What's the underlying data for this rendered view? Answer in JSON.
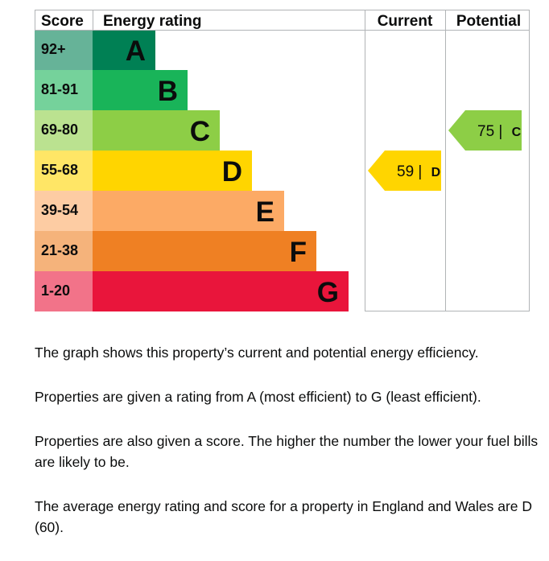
{
  "chart_data": {
    "type": "bar",
    "headers": {
      "score": "Score",
      "rating": "Energy rating",
      "current": "Current",
      "potential": "Potential"
    },
    "bands": [
      {
        "score_range": "92+",
        "letter": "A",
        "color": "#008054",
        "score_bg": "#66b398"
      },
      {
        "score_range": "81-91",
        "letter": "B",
        "color": "#19b459",
        "score_bg": "#75d29b"
      },
      {
        "score_range": "69-80",
        "letter": "C",
        "color": "#8dce46",
        "score_bg": "#bbe290"
      },
      {
        "score_range": "55-68",
        "letter": "D",
        "color": "#ffd500",
        "score_bg": "#ffe666"
      },
      {
        "score_range": "39-54",
        "letter": "E",
        "color": "#fcaa65",
        "score_bg": "#fdcca3"
      },
      {
        "score_range": "21-38",
        "letter": "F",
        "color": "#ef8023",
        "score_bg": "#f5b37b"
      },
      {
        "score_range": "1-20",
        "letter": "G",
        "color": "#e9153b",
        "score_bg": "#f27389"
      }
    ],
    "current": {
      "score": "59",
      "letter": "D",
      "band_index": 3,
      "color": "#ffd500"
    },
    "potential": {
      "score": "75",
      "letter": "C",
      "band_index": 2,
      "color": "#8dce46"
    }
  },
  "notes": {
    "p1": "The graph shows this property’s current and potential energy efficiency.",
    "p2": "Properties are given a rating from A (most efficient) to G (least efficient).",
    "p3": "Properties are also given a score. The higher the number the lower your fuel bills are likely to be.",
    "p4": "The average energy rating and score for a property in England and Wales are D (60)."
  }
}
